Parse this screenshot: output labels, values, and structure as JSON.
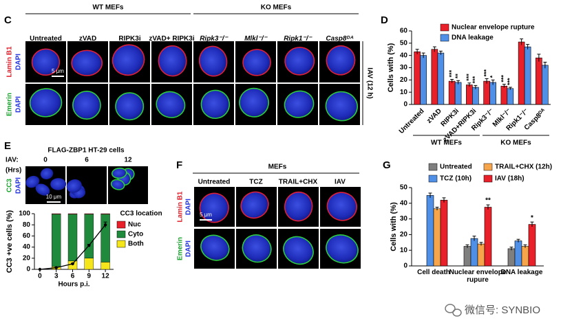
{
  "panel_C": {
    "label": "C",
    "groups": [
      "WT MEFs",
      "KO MEFs"
    ],
    "columns": [
      "Untreated",
      "zVAD",
      "RIPK3i",
      "zVAD+ RIPK3i",
      "Ripk3⁻/⁻",
      "Mlkl⁻/⁻",
      "Ripk1⁻/⁻",
      "Casp8ᴰᴬ"
    ],
    "rows": [
      [
        "Lamin B1",
        "DAPI"
      ],
      [
        "Emerin",
        "DAPI"
      ]
    ],
    "scale_bar": "5 μm",
    "side_label": "IAV (12 h)"
  },
  "panel_E_images": {
    "title": "FLAG-ZBP1 HT-29 cells",
    "row_label": [
      "IAV:",
      "(Hrs)"
    ],
    "timepoints": [
      "0",
      "6",
      "12"
    ],
    "stain": [
      "CC3",
      "DAPI"
    ],
    "scale_bar": "10 μm"
  },
  "panel_F": {
    "label": "F",
    "title": "MEFs",
    "columns": [
      "Untreated",
      "TCZ",
      "TRAIL+CHX",
      "IAV"
    ],
    "rows": [
      [
        "Lamin B1",
        "DAPI"
      ],
      [
        "Emerin",
        "DAPI"
      ]
    ],
    "scale_bar": "5 μm"
  },
  "chart_data": [
    {
      "type": "grouped_bar",
      "panel_label": "D",
      "ylabel": "Cells with (%)",
      "categories": [
        "Untreated",
        "zVAD",
        "RIPK3i",
        "zVAD+RIPK3i",
        "Ripk3⁻/⁻",
        "Mlkl⁻/⁻",
        "Ripk1⁻/⁻",
        "Casp8ᴰᴬ"
      ],
      "groups": [
        "WT MEFs",
        "KO MEFs"
      ],
      "ylim": [
        0,
        60
      ],
      "yticks": [
        0,
        10,
        20,
        30,
        40,
        50,
        60
      ],
      "series": [
        {
          "name": "Nuclear envelope rupture",
          "color": "#e8202a",
          "values": [
            43,
            45,
            19,
            16,
            19,
            15,
            51,
            38
          ],
          "errors": [
            2,
            2,
            1.5,
            1.5,
            2,
            1.5,
            2.5,
            3
          ],
          "annotations": [
            null,
            null,
            "***",
            "***",
            "***",
            "***",
            null,
            null
          ]
        },
        {
          "name": "DNA leakage",
          "color": "#4f8fe6",
          "values": [
            40,
            42,
            18,
            14,
            18,
            13,
            47,
            32
          ],
          "errors": [
            2,
            1.5,
            1.5,
            1.5,
            2,
            1,
            2,
            2.5
          ],
          "annotations": [
            null,
            null,
            "**",
            "***",
            "*",
            "***",
            null,
            null
          ]
        }
      ]
    },
    {
      "type": "stacked_bar",
      "panel_label": "E",
      "ylabel": "CC3 +ve cells (%)",
      "xlabel": "Hours p.i.",
      "x": [
        0,
        3,
        6,
        9,
        12
      ],
      "xlim": [
        -1,
        13.5
      ],
      "xticks": [
        0,
        3,
        6,
        9,
        12
      ],
      "ylim": [
        0,
        100
      ],
      "yticks": [
        0,
        20,
        40,
        60,
        80,
        100
      ],
      "legend_title": "CC3 location",
      "series": [
        {
          "name": "Nuc",
          "color": "#e8202a",
          "values": [
            null,
            1,
            1,
            1,
            1
          ]
        },
        {
          "name": "Cyto",
          "color": "#1f8a3b",
          "values": [
            null,
            94,
            84,
            79,
            86
          ]
        },
        {
          "name": "Both",
          "color": "#f5e61c",
          "values": [
            null,
            5,
            15,
            20,
            13
          ]
        },
        {
          "type": "line",
          "color": "#000000",
          "values": [
            0,
            3,
            10,
            43,
            80
          ],
          "errors": [
            0,
            0.5,
            1,
            2,
            5
          ]
        }
      ]
    },
    {
      "type": "grouped_bar",
      "panel_label": "G",
      "ylabel": "Cells with (%)",
      "categories": [
        "Cell death",
        "Nuclear envelope rupure",
        "DNA leakage"
      ],
      "ylim": [
        0,
        50
      ],
      "yticks": [
        0,
        10,
        20,
        30,
        40,
        50
      ],
      "series": [
        {
          "name": "Untreated",
          "color": "#7f7f7f",
          "values": [
            null,
            12.5,
            11
          ],
          "errors": [
            null,
            1,
            1
          ]
        },
        {
          "name": "TCZ (10h)",
          "color": "#4f8fe6",
          "values": [
            45,
            17.5,
            16
          ],
          "errors": [
            1.5,
            1.5,
            1
          ]
        },
        {
          "name": "TRAIL+CHX (12h)",
          "color": "#f7a54a",
          "values": [
            36.5,
            14,
            12.5
          ],
          "errors": [
            1,
            1,
            1
          ]
        },
        {
          "name": "IAV (18h)",
          "color": "#e8202a",
          "values": [
            42,
            37.5,
            26.5
          ],
          "errors": [
            1.5,
            1.5,
            1.5
          ],
          "annotations": [
            null,
            "**",
            "*"
          ]
        }
      ]
    }
  ],
  "watermark": "微信号: SYNBIO"
}
